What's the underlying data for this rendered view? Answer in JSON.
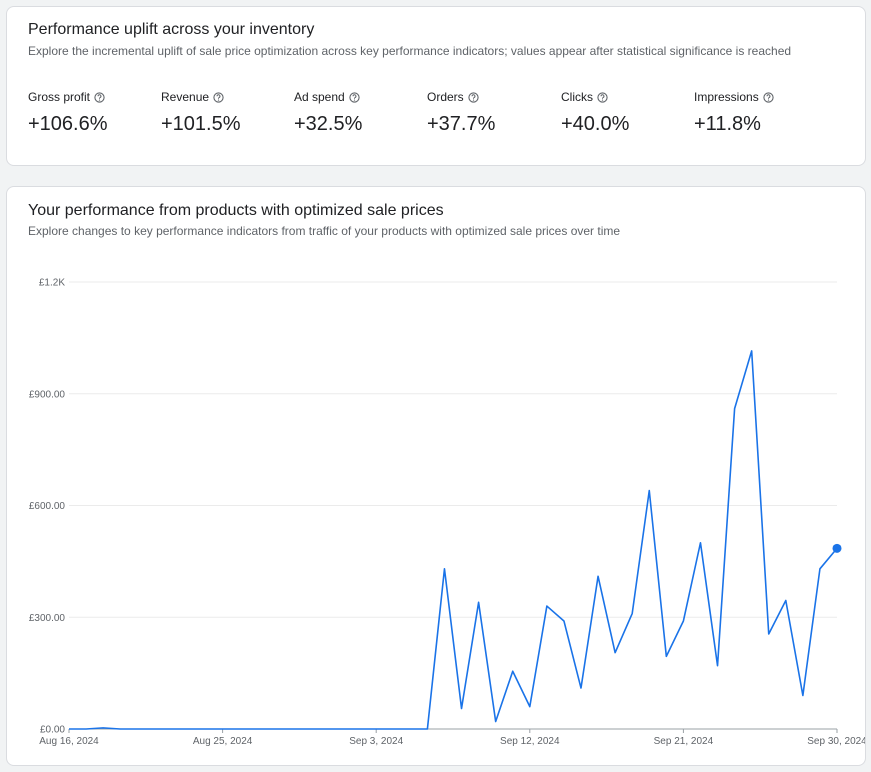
{
  "uplift": {
    "title": "Performance uplift across your inventory",
    "subtitle": "Explore the incremental uplift of sale price optimization across key performance indicators; values appear after statistical significance is reached",
    "kpis": [
      {
        "label": "Gross profit",
        "value": "+106.6%",
        "icon": "help-circle-icon"
      },
      {
        "label": "Revenue",
        "value": "+101.5%",
        "icon": "help-circle-icon"
      },
      {
        "label": "Ad spend",
        "value": "+32.5%",
        "icon": "help-circle-icon"
      },
      {
        "label": "Orders",
        "value": "+37.7%",
        "icon": "help-circle-icon"
      },
      {
        "label": "Clicks",
        "value": "+40.0%",
        "icon": "help-circle-icon"
      },
      {
        "label": "Impressions",
        "value": "+11.8%",
        "icon": "help-circle-icon"
      }
    ],
    "selected_kpi": "Gross profit"
  },
  "performance": {
    "title": "Your performance from products with optimized sale prices",
    "subtitle": "Explore changes to key performance indicators from traffic of your products with optimized sale prices over time"
  },
  "chart_data": {
    "type": "line",
    "title": "",
    "xlabel": "",
    "ylabel": "",
    "ylim": [
      0,
      1200
    ],
    "yticks": [
      0,
      300,
      600,
      900,
      1200
    ],
    "ytick_labels": [
      "£0.00",
      "£300.00",
      "£600.00",
      "£900.00",
      "£1.2K"
    ],
    "xtick_labels": [
      "Aug 16, 2024",
      "Aug 25, 2024",
      "Sep 3, 2024",
      "Sep 12, 2024",
      "Sep 21, 2024",
      "Sep 30, 2024"
    ],
    "xtick_index": [
      0,
      9,
      18,
      27,
      36,
      45
    ],
    "grid": true,
    "line_color": "#1a73e8",
    "series": [
      {
        "name": "",
        "x": [
          "2024-08-16",
          "2024-08-17",
          "2024-08-18",
          "2024-08-19",
          "2024-08-20",
          "2024-08-21",
          "2024-08-22",
          "2024-08-23",
          "2024-08-24",
          "2024-08-25",
          "2024-08-26",
          "2024-08-27",
          "2024-08-28",
          "2024-08-29",
          "2024-08-30",
          "2024-08-31",
          "2024-09-01",
          "2024-09-02",
          "2024-09-03",
          "2024-09-04",
          "2024-09-05",
          "2024-09-06",
          "2024-09-07",
          "2024-09-08",
          "2024-09-09",
          "2024-09-10",
          "2024-09-11",
          "2024-09-12",
          "2024-09-13",
          "2024-09-14",
          "2024-09-15",
          "2024-09-16",
          "2024-09-17",
          "2024-09-18",
          "2024-09-19",
          "2024-09-20",
          "2024-09-21",
          "2024-09-22",
          "2024-09-23",
          "2024-09-24",
          "2024-09-25",
          "2024-09-26",
          "2024-09-27",
          "2024-09-28",
          "2024-09-29",
          "2024-09-30"
        ],
        "values": [
          0,
          0,
          3,
          0,
          0,
          0,
          0,
          0,
          0,
          0,
          0,
          0,
          0,
          0,
          0,
          0,
          0,
          0,
          0,
          0,
          0,
          0,
          430,
          55,
          340,
          20,
          155,
          60,
          330,
          290,
          110,
          410,
          205,
          310,
          640,
          195,
          290,
          500,
          170,
          860,
          1015,
          255,
          345,
          90,
          430,
          485
        ]
      }
    ]
  }
}
